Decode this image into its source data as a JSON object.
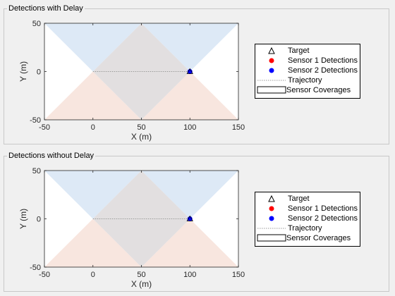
{
  "panels": [
    {
      "title": "Detections with Delay",
      "xlabel": "X (m)",
      "ylabel": "Y (m)",
      "legend": [
        "Target",
        "Sensor 1 Detections",
        "Sensor 2 Detections",
        "Trajectory",
        "Sensor Coverages"
      ]
    },
    {
      "title": "Detections without Delay",
      "xlabel": "X (m)",
      "ylabel": "Y (m)",
      "legend": [
        "Target",
        "Sensor 1 Detections",
        "Sensor 2 Detections",
        "Trajectory",
        "Sensor Coverages"
      ]
    }
  ],
  "chart_data": {
    "type": "scatter",
    "xlim": [
      -50,
      150
    ],
    "ylim": [
      -50,
      50
    ],
    "xticks": [
      "-50",
      "0",
      "50",
      "100",
      "150"
    ],
    "yticks": [
      "50",
      "0",
      "-50"
    ],
    "trajectory": {
      "x": [
        0,
        100
      ],
      "y": [
        0,
        0
      ]
    },
    "target": {
      "x": 100,
      "y": 0
    },
    "sensor1_detections": [],
    "sensor2_detections": [
      {
        "x": 100,
        "y": 0
      }
    ],
    "colors": {
      "cover_blue": "#dde9f6",
      "cover_orange": "#f8e6df",
      "cover_overlap": "#e2dfe0",
      "sensor1": "#ff0000",
      "sensor2": "#0000ff",
      "trajectory": "#9a9a9a"
    }
  }
}
